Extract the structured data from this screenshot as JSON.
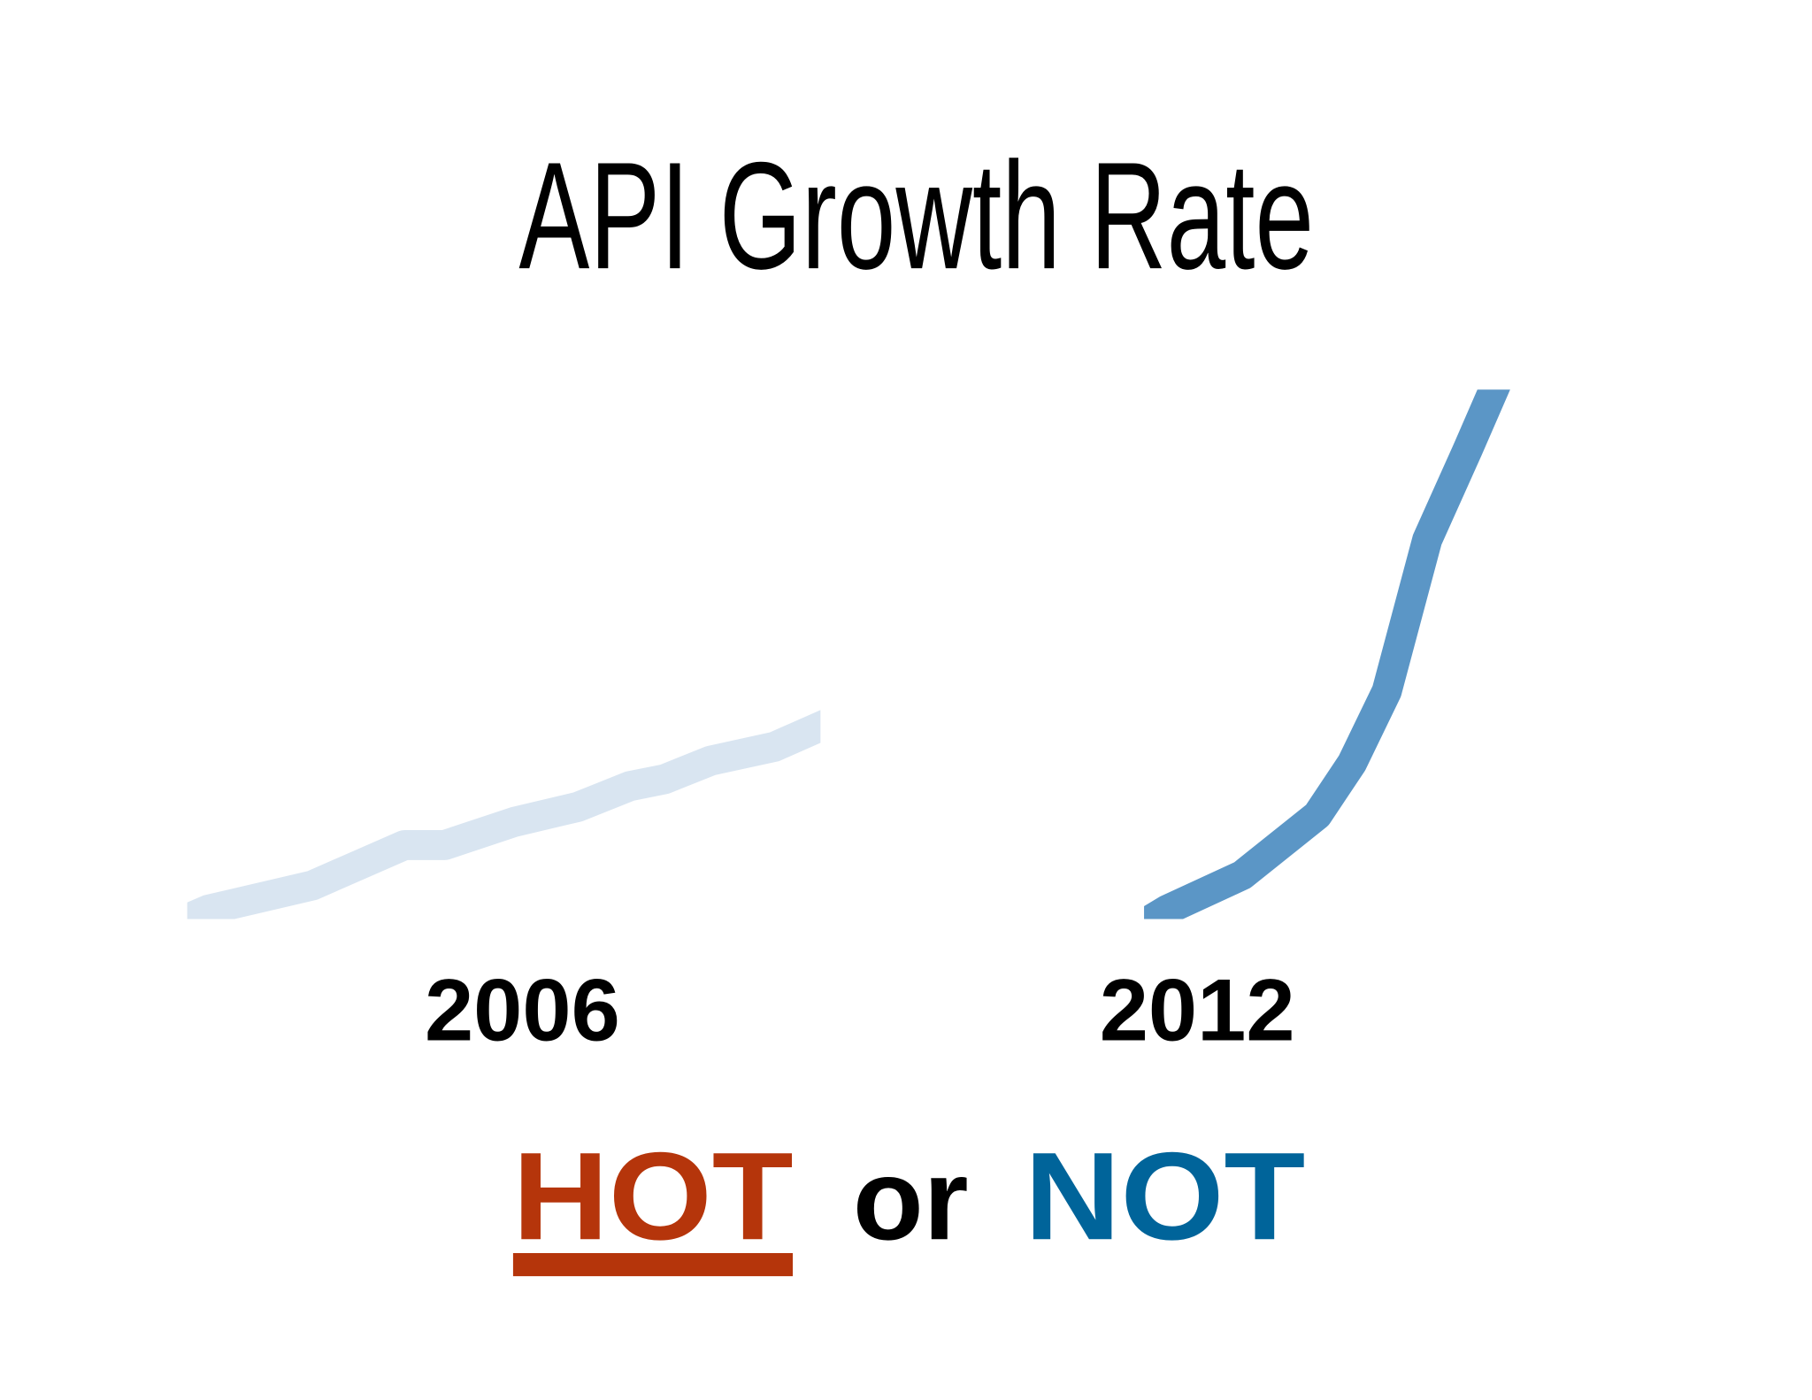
{
  "title": "API Growth Rate",
  "years": [
    "2006",
    "2012"
  ],
  "tagline": {
    "hot": "HOT",
    "or": "or",
    "not": "NOT"
  }
}
